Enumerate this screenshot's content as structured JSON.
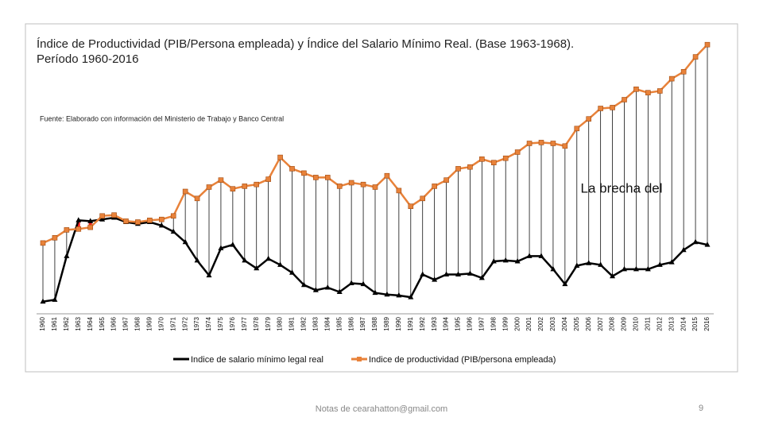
{
  "chart_data": {
    "type": "line",
    "title": "Índice de Productividad (PIB/Persona empleada) y Índice del Salario Mínimo Real. (Base 1963-1968).",
    "subtitle": "Período 1960-2016",
    "source": "Fuente: Elaborado con información del Ministerio de Trabajo y Banco Central",
    "annotation": "La brecha del",
    "categories": [
      "1960",
      "1961",
      "1962",
      "1963",
      "1964",
      "1965",
      "1966",
      "1967",
      "1968",
      "1969",
      "1970",
      "1971",
      "1972",
      "1973",
      "1974",
      "1975",
      "1976",
      "1977",
      "1978",
      "1979",
      "1980",
      "1981",
      "1982",
      "1983",
      "1984",
      "1985",
      "1986",
      "1987",
      "1988",
      "1989",
      "1990",
      "1991",
      "1992",
      "1993",
      "1994",
      "1995",
      "1996",
      "1997",
      "1998",
      "1999",
      "2000",
      "2001",
      "2002",
      "2003",
      "2004",
      "2005",
      "2006",
      "2007",
      "2008",
      "2009",
      "2010",
      "2011",
      "2012",
      "2013",
      "2014",
      "2015",
      "2016"
    ],
    "series": [
      {
        "name": "Indice de salario mínimo legal real",
        "color": "#000000",
        "values": [
          14,
          16,
          66,
          107,
          106,
          108,
          110,
          105,
          103,
          105,
          101,
          94,
          82,
          61,
          44,
          75,
          79,
          61,
          52,
          63,
          56,
          47,
          33,
          27,
          30,
          25,
          35,
          34,
          24,
          22,
          21,
          19,
          45,
          39,
          45,
          45,
          46,
          41,
          60,
          61,
          60,
          66,
          66,
          51,
          34,
          55,
          58,
          56,
          43,
          51,
          51,
          51,
          56,
          59,
          73,
          82,
          79
        ]
      },
      {
        "name": "Indice de productividad (PIB/persona empleada)",
        "color": "#e8823a",
        "values": [
          81,
          87,
          96,
          97,
          99,
          112,
          113,
          106,
          105,
          107,
          108,
          112,
          140,
          132,
          145,
          153,
          143,
          146,
          148,
          154,
          179,
          166,
          161,
          156,
          156,
          146,
          150,
          148,
          145,
          158,
          141,
          123,
          132,
          146,
          153,
          166,
          168,
          177,
          173,
          178,
          185,
          195,
          196,
          195,
          192,
          212,
          223,
          235,
          236,
          245,
          257,
          253,
          255,
          269,
          277,
          294,
          308
        ]
      }
    ],
    "ylim": [
      0,
      330
    ]
  },
  "slide": {
    "footer": "Notas de cearahatton@gmail.com",
    "page_number": "9"
  }
}
